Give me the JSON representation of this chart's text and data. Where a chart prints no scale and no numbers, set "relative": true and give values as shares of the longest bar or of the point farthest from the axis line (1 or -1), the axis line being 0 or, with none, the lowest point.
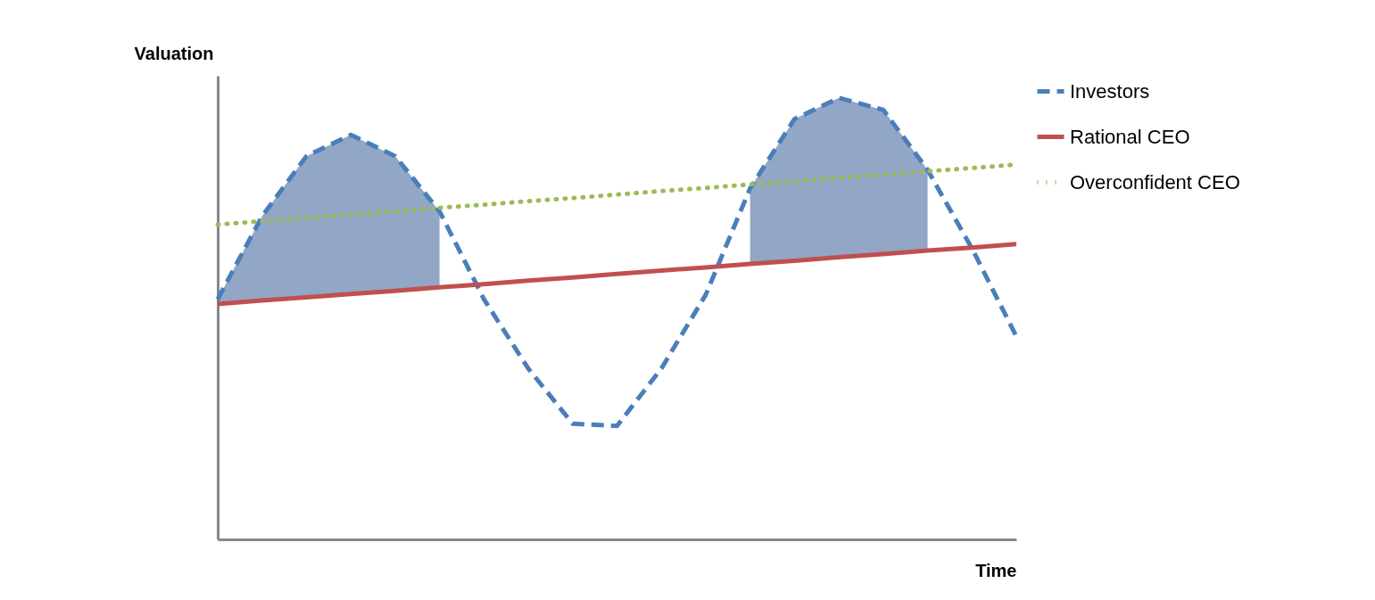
{
  "chart_data": {
    "type": "line",
    "relative": true,
    "xlabel": "Time",
    "ylabel": "Valuation",
    "categories": [
      null,
      null,
      null,
      null,
      null,
      null,
      null,
      null,
      null,
      null,
      null,
      null,
      null,
      null,
      null,
      null,
      null,
      null,
      null
    ],
    "grid": false,
    "legend": "right",
    "marker": "none",
    "series": [
      {
        "name": "Investors",
        "color": "#4a7ebb",
        "line_style": "dashed",
        "values": [
          0.544,
          0.732,
          0.868,
          0.916,
          0.868,
          0.743,
          0.544,
          0.387,
          0.262,
          0.257,
          0.387,
          0.554,
          0.795,
          0.952,
          1.0,
          0.973,
          0.837,
          0.659,
          0.46
        ],
        "lower": [
          0.533,
          0.541,
          0.548,
          0.556,
          0.563,
          0.571,
          null,
          null,
          null,
          null,
          null,
          null,
          0.624,
          0.631,
          0.639,
          0.646,
          0.654,
          null,
          null
        ],
        "upper": [
          0.544,
          0.732,
          0.868,
          0.916,
          0.868,
          0.743,
          null,
          null,
          null,
          null,
          null,
          null,
          0.795,
          0.952,
          1.0,
          0.973,
          0.837,
          null,
          null
        ]
      },
      {
        "name": "Rational CEO",
        "color": "#c0504d",
        "line_style": "solid",
        "values": [
          0.533,
          0.541,
          0.548,
          0.556,
          0.563,
          0.571,
          0.578,
          0.586,
          0.593,
          0.601,
          0.609,
          0.616,
          0.624,
          0.631,
          0.639,
          0.646,
          0.654,
          0.661,
          0.669
        ]
      },
      {
        "name": "Overconfident CEO",
        "color": "#9bbb59",
        "line_style": "dotted",
        "values": [
          0.713,
          0.721,
          0.728,
          0.736,
          0.743,
          0.751,
          0.758,
          0.766,
          0.773,
          0.781,
          0.789,
          0.796,
          0.804,
          0.811,
          0.819,
          0.826,
          0.834,
          0.841,
          0.849
        ]
      }
    ]
  }
}
